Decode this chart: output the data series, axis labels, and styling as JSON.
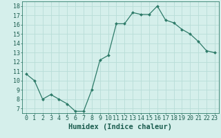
{
  "x": [
    0,
    1,
    2,
    3,
    4,
    5,
    6,
    7,
    8,
    9,
    10,
    11,
    12,
    13,
    14,
    15,
    16,
    17,
    18,
    19,
    20,
    21,
    22,
    23
  ],
  "y": [
    10.7,
    10.0,
    8.0,
    8.5,
    8.0,
    7.5,
    6.7,
    6.7,
    9.0,
    12.2,
    12.7,
    16.1,
    16.1,
    17.3,
    17.1,
    17.1,
    18.0,
    16.5,
    16.2,
    15.5,
    15.0,
    14.2,
    13.2,
    13.0
  ],
  "xlabel": "Humidex (Indice chaleur)",
  "xlim": [
    -0.5,
    23.5
  ],
  "ylim": [
    6.5,
    18.5
  ],
  "yticks": [
    7,
    8,
    9,
    10,
    11,
    12,
    13,
    14,
    15,
    16,
    17,
    18
  ],
  "xticks": [
    0,
    1,
    2,
    3,
    4,
    5,
    6,
    7,
    8,
    9,
    10,
    11,
    12,
    13,
    14,
    15,
    16,
    17,
    18,
    19,
    20,
    21,
    22,
    23
  ],
  "line_color": "#2d7a68",
  "marker_color": "#2d7a68",
  "bg_color": "#d5efeb",
  "grid_color": "#b8ddd7",
  "axis_label_color": "#1a5c4e",
  "tick_color": "#1a5c4e",
  "xlabel_fontsize": 7.5,
  "tick_fontsize": 6.0,
  "spine_color": "#2d7a68"
}
